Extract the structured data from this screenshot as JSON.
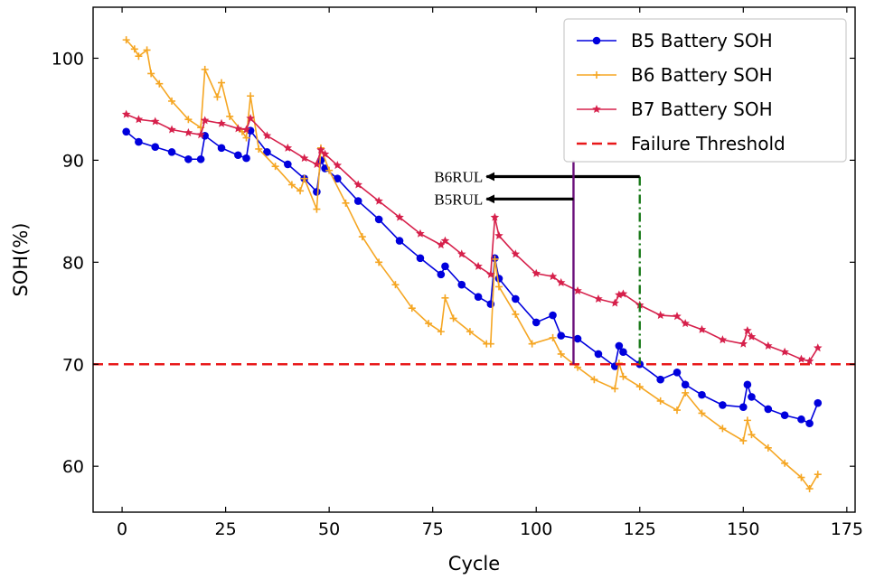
{
  "chart_data": {
    "type": "line",
    "xlabel": "Cycle",
    "ylabel": "SOH(%)",
    "xlim": [
      -7,
      177
    ],
    "ylim": [
      55.5,
      105
    ],
    "xticks": [
      0,
      25,
      50,
      75,
      100,
      125,
      150,
      175
    ],
    "yticks": [
      60,
      70,
      80,
      90,
      100
    ],
    "grid": false,
    "legend_position": "top-right",
    "series": [
      {
        "name": "B5 Battery SOH",
        "color": "#0000dd",
        "marker": "circle",
        "x": [
          1,
          4,
          8,
          12,
          16,
          19,
          20,
          24,
          28,
          30,
          31,
          35,
          40,
          44,
          47,
          48,
          49,
          52,
          57,
          62,
          67,
          72,
          77,
          78,
          82,
          86,
          89,
          90,
          91,
          95,
          100,
          104,
          106,
          110,
          115,
          119,
          120,
          121,
          125,
          130,
          134,
          136,
          140,
          145,
          150,
          151,
          152,
          156,
          160,
          164,
          166,
          168
        ],
        "y": [
          92.8,
          91.8,
          91.3,
          90.8,
          90.1,
          90.1,
          92.4,
          91.2,
          90.5,
          90.2,
          92.9,
          90.8,
          89.6,
          88.2,
          86.9,
          90.0,
          89.2,
          88.2,
          86.0,
          84.2,
          82.1,
          80.4,
          78.8,
          79.6,
          77.8,
          76.6,
          75.9,
          80.4,
          78.4,
          76.4,
          74.1,
          74.8,
          72.8,
          72.5,
          71.0,
          69.8,
          71.8,
          71.2,
          70.0,
          68.5,
          69.2,
          68.0,
          67.0,
          66.0,
          65.8,
          68.0,
          66.8,
          65.6,
          65.0,
          64.6,
          64.2,
          66.2
        ]
      },
      {
        "name": "B6 Battery SOH",
        "color": "#f5a623",
        "marker": "plus",
        "x": [
          1,
          3,
          4,
          6,
          7,
          9,
          12,
          16,
          19,
          20,
          23,
          24,
          26,
          29,
          30,
          31,
          33,
          37,
          41,
          43,
          44,
          47,
          48,
          50,
          54,
          58,
          62,
          66,
          70,
          74,
          77,
          78,
          80,
          84,
          88,
          89,
          90,
          91,
          95,
          99,
          104,
          106,
          110,
          114,
          119,
          120,
          121,
          125,
          130,
          134,
          136,
          140,
          145,
          150,
          151,
          152,
          156,
          160,
          164,
          166,
          168
        ],
        "y": [
          101.8,
          100.9,
          100.2,
          100.8,
          98.5,
          97.5,
          95.8,
          94.0,
          93.2,
          98.9,
          96.2,
          97.6,
          94.3,
          92.8,
          92.2,
          96.3,
          91.1,
          89.4,
          87.6,
          87.0,
          88.2,
          85.2,
          91.2,
          89.0,
          85.8,
          82.5,
          80.0,
          77.8,
          75.5,
          74.0,
          73.2,
          76.5,
          74.5,
          73.2,
          72.0,
          72.0,
          80.3,
          77.6,
          74.9,
          72.0,
          72.6,
          71.0,
          69.7,
          68.5,
          67.6,
          70.1,
          68.8,
          67.8,
          66.4,
          65.5,
          67.2,
          65.2,
          63.7,
          62.5,
          64.5,
          63.1,
          61.8,
          60.3,
          58.9,
          57.8,
          59.2
        ]
      },
      {
        "name": "B7 Battery SOH",
        "color": "#d6204b",
        "marker": "star",
        "x": [
          1,
          4,
          8,
          12,
          16,
          19,
          20,
          24,
          28,
          30,
          31,
          35,
          40,
          44,
          47,
          48,
          49,
          52,
          57,
          62,
          67,
          72,
          77,
          78,
          82,
          86,
          89,
          90,
          91,
          95,
          100,
          104,
          106,
          110,
          115,
          119,
          120,
          121,
          125,
          130,
          134,
          136,
          140,
          145,
          150,
          151,
          152,
          156,
          160,
          164,
          166,
          168
        ],
        "y": [
          94.5,
          94.0,
          93.8,
          93.0,
          92.7,
          92.5,
          93.9,
          93.6,
          93.1,
          93.0,
          94.1,
          92.4,
          91.2,
          90.2,
          89.6,
          91.0,
          90.6,
          89.5,
          87.6,
          86.0,
          84.4,
          82.8,
          81.7,
          82.1,
          80.8,
          79.6,
          78.8,
          84.4,
          82.6,
          80.8,
          78.9,
          78.6,
          78.0,
          77.2,
          76.4,
          76.0,
          76.8,
          76.9,
          75.8,
          74.8,
          74.7,
          74.0,
          73.4,
          72.4,
          72.0,
          73.3,
          72.7,
          71.8,
          71.2,
          70.5,
          70.3,
          71.6
        ]
      },
      {
        "name": "Failure Threshold",
        "color": "#e8181a",
        "marker": "none",
        "dashed": true,
        "x": [
          -7,
          177
        ],
        "y": [
          70,
          70
        ]
      }
    ],
    "annotations": [
      {
        "text": "B6RUL",
        "x_from": 125,
        "x_to": 88,
        "y": 88.4,
        "vline_x": 125,
        "vline_y_top": 88.4,
        "vline_y_bottom": 70,
        "vline_color": "#1a7a1a",
        "vline_style": "dashdot"
      },
      {
        "text": "B5RUL",
        "x_from": 109,
        "x_to": 88,
        "y": 86.2,
        "vline_x": 109,
        "vline_y_top": 90,
        "vline_y_bottom": 70,
        "vline_color": "#6a0f7a",
        "vline_style": "solid"
      }
    ]
  }
}
